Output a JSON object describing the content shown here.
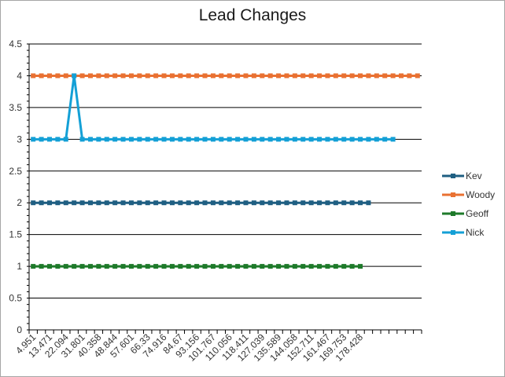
{
  "chart_data": {
    "type": "line",
    "title": "Lead Changes",
    "xlabel": "",
    "ylabel": "",
    "ylim": [
      0,
      4.5
    ],
    "y_ticks": [
      "0",
      "0.5",
      "1",
      "1.5",
      "2",
      "2.5",
      "3",
      "3.5",
      "4",
      "4.5"
    ],
    "x_tick_labels": [
      "4.951",
      "13.471",
      "22.094",
      "31.801",
      "40.358",
      "48.844",
      "57.601",
      "66.33",
      "74.916",
      "84.67",
      "93.156",
      "101.767",
      "110.056",
      "118.411",
      "127.039",
      "135.589",
      "144.058",
      "152.711",
      "161.467",
      "169.753",
      "178.428"
    ],
    "x_category_count": 48,
    "grid": true,
    "legend_position": "right",
    "series": [
      {
        "name": "Kev",
        "color": "#1f5f82",
        "points": 42,
        "values": [
          2
        ]
      },
      {
        "name": "Woody",
        "color": "#e97132",
        "points": 48,
        "values": [
          4
        ]
      },
      {
        "name": "Geoff",
        "color": "#1e7a2a",
        "points": 41,
        "values": [
          1
        ]
      },
      {
        "name": "Nick",
        "color": "#14a0d6",
        "points": 45,
        "values": [
          3,
          3,
          3,
          3,
          3,
          4,
          3
        ]
      }
    ]
  }
}
